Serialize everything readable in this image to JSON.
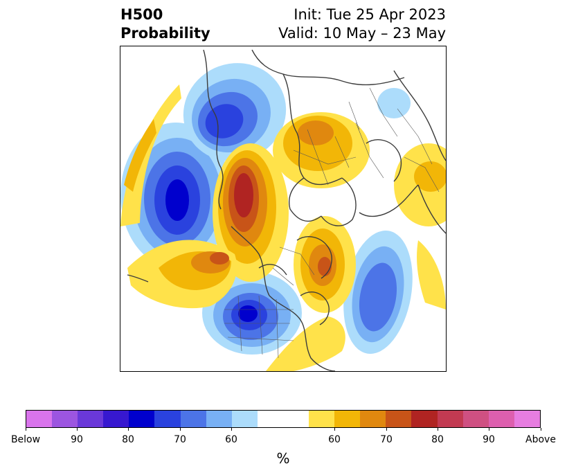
{
  "title": {
    "left_line1": "H500",
    "left_line2": "Probability",
    "right_line1": "Init: Tue 25 Apr 2023",
    "right_line2": "Valid: 10 May – 23 May"
  },
  "colorbar": {
    "unit_label": "%",
    "tick_labels": [
      "Below",
      "90",
      "80",
      "70",
      "60",
      "60",
      "70",
      "80",
      "90",
      "Above"
    ],
    "colors": [
      "#d974ec",
      "#9c55e0",
      "#6a38d9",
      "#3718d0",
      "#0000cd",
      "#2a42de",
      "#4c74e7",
      "#78b0f4",
      "#acdcfb",
      "#ffffff",
      "#ffffff",
      "#ffe24a",
      "#f2b607",
      "#e0880f",
      "#c85418",
      "#b02422",
      "#c23a52",
      "#cf5082",
      "#dd5fae",
      "#e77de0"
    ]
  },
  "colors": {
    "below": "#0000cd",
    "above": "#b02422"
  }
}
